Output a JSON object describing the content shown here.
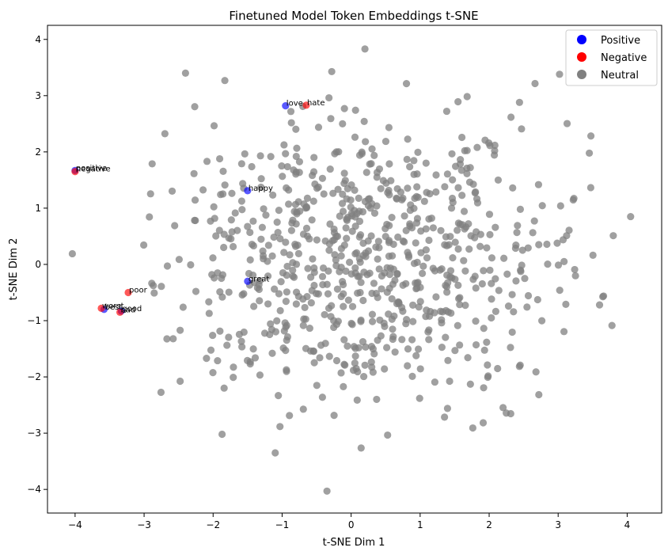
{
  "chart_data": {
    "type": "scatter",
    "title": "Finetuned Model Token Embeddings t-SNE",
    "xlabel": "t-SNE Dim 1",
    "ylabel": "t-SNE Dim 2",
    "xlim": [
      -4.4,
      4.5
    ],
    "ylim": [
      -4.42,
      4.25
    ],
    "xticks": [
      -4,
      -3,
      -2,
      -1,
      0,
      1,
      2,
      3,
      4
    ],
    "yticks": [
      -4,
      -3,
      -2,
      -1,
      0,
      1,
      2,
      3,
      4
    ],
    "grid": false,
    "legend": {
      "placement": "top-right",
      "entries": [
        {
          "label": "Positive",
          "color": "#0000ff"
        },
        {
          "label": "Negative",
          "color": "#ff0000"
        },
        {
          "label": "Neutral",
          "color": "#808080"
        }
      ]
    },
    "series": [
      {
        "name": "Positive",
        "color": "#0000ff",
        "points": [
          {
            "x": -0.95,
            "y": 2.82,
            "label": "love"
          },
          {
            "x": -1.5,
            "y": 1.31,
            "label": "happy"
          },
          {
            "x": -1.5,
            "y": -0.3,
            "label": "great"
          },
          {
            "x": -3.58,
            "y": -0.8,
            "label": "best"
          },
          {
            "x": -3.33,
            "y": -0.83,
            "label": "good"
          },
          {
            "x": -4.0,
            "y": 1.67,
            "label": "positive"
          }
        ]
      },
      {
        "name": "Negative",
        "color": "#ff0000",
        "points": [
          {
            "x": -0.65,
            "y": 2.83,
            "label": "hate"
          },
          {
            "x": -3.23,
            "y": -0.5,
            "label": "poor"
          },
          {
            "x": -3.62,
            "y": -0.78,
            "label": "worst"
          },
          {
            "x": -3.35,
            "y": -0.85,
            "label": "bad"
          },
          {
            "x": -4.0,
            "y": 1.65,
            "label": "negative"
          }
        ]
      },
      {
        "name": "Neutral",
        "color": "#808080",
        "seed": 42,
        "count": 760,
        "center": [
          0.2,
          0.1
        ],
        "spread": [
          1.55,
          1.35
        ],
        "fixed_points": [
          {
            "x": -4.04,
            "y": 0.19
          },
          {
            "x": -1.87,
            "y": -3.02
          },
          {
            "x": -1.1,
            "y": -3.35
          },
          {
            "x": -0.35,
            "y": -4.03
          },
          {
            "x": 4.05,
            "y": 0.85
          },
          {
            "x": 3.6,
            "y": -0.72
          },
          {
            "x": 3.02,
            "y": 3.38
          },
          {
            "x": -2.4,
            "y": 3.4
          },
          {
            "x": 0.2,
            "y": 3.83
          }
        ]
      }
    ]
  }
}
